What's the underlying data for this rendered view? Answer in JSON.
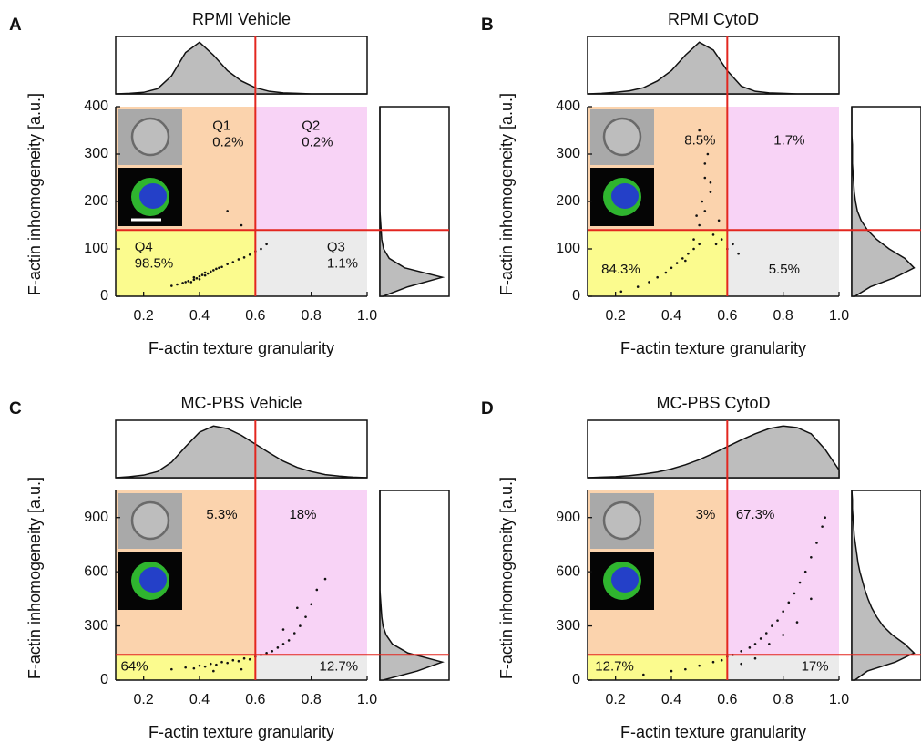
{
  "chart_data": [
    {
      "type": "scatter",
      "panel": "A",
      "title": "RPMI Vehicle",
      "xlabel": "F-actin texture granularity",
      "ylabel": "F-actin inhomogeneity [a.u.]",
      "xlim": [
        0.1,
        1.0
      ],
      "ylim": [
        0,
        400
      ],
      "xticks": [
        0.2,
        0.4,
        0.6,
        0.8,
        {
          "value": 1.0,
          "label": "1.0"
        }
      ],
      "yticks": [
        0,
        100,
        200,
        300,
        400
      ],
      "thresholds": {
        "x": 0.6,
        "y": 140
      },
      "threshold_color": "#e3261f",
      "point_color": "#111111",
      "density_fill": "#bdbdbd",
      "quadrants": {
        "names": [
          "Q1",
          "Q2",
          "Q3",
          "Q4"
        ],
        "values": [
          0.2,
          0.2,
          1.1,
          98.5
        ],
        "value_labels": [
          "0.2%",
          "0.2%",
          "1.1%",
          "98.5%"
        ],
        "colors": [
          "#fbd3ad",
          "#f8d3f6",
          "#ebebeb",
          "#fbfb8e"
        ]
      },
      "points": {
        "x": [
          0.3,
          0.32,
          0.34,
          0.35,
          0.36,
          0.37,
          0.38,
          0.38,
          0.39,
          0.4,
          0.4,
          0.41,
          0.42,
          0.42,
          0.43,
          0.44,
          0.45,
          0.46,
          0.47,
          0.48,
          0.5,
          0.52,
          0.54,
          0.56,
          0.58,
          0.6,
          0.62,
          0.64,
          0.55,
          0.5
        ],
        "y": [
          22,
          25,
          28,
          30,
          32,
          30,
          35,
          40,
          38,
          42,
          36,
          45,
          44,
          50,
          48,
          52,
          55,
          58,
          60,
          62,
          68,
          72,
          78,
          82,
          88,
          95,
          100,
          110,
          150,
          180
        ]
      },
      "x_density": {
        "x": [
          0.1,
          0.15,
          0.2,
          0.25,
          0.3,
          0.35,
          0.4,
          0.45,
          0.5,
          0.55,
          0.6,
          0.65,
          0.7,
          0.75,
          0.8,
          0.85,
          0.9,
          0.95,
          1.0
        ],
        "values": [
          0,
          0.01,
          0.03,
          0.1,
          0.35,
          0.8,
          1.0,
          0.75,
          0.45,
          0.25,
          0.12,
          0.05,
          0.02,
          0.01,
          0,
          0,
          0,
          0,
          0
        ]
      },
      "y_density": {
        "y": [
          0,
          20,
          40,
          60,
          80,
          100,
          120,
          140,
          160,
          180,
          200,
          220,
          240,
          260,
          280,
          300,
          320,
          340,
          360,
          380,
          400
        ],
        "values": [
          0.05,
          0.45,
          1.0,
          0.4,
          0.15,
          0.06,
          0.03,
          0.02,
          0.01,
          0,
          0,
          0,
          0,
          0,
          0,
          0,
          0,
          0,
          0,
          0,
          0
        ]
      }
    },
    {
      "type": "scatter",
      "panel": "B",
      "title": "RPMI CytoD",
      "xlabel": "F-actin texture granularity",
      "ylabel": "F-actin inhomogeneity [a.u.]",
      "xlim": [
        0.1,
        1.0
      ],
      "ylim": [
        0,
        400
      ],
      "xticks": [
        0.2,
        0.4,
        0.6,
        0.8,
        {
          "value": 1.0,
          "label": "1.0"
        }
      ],
      "yticks": [
        0,
        100,
        200,
        300,
        400
      ],
      "thresholds": {
        "x": 0.6,
        "y": 140
      },
      "threshold_color": "#e3261f",
      "point_color": "#111111",
      "density_fill": "#bdbdbd",
      "quadrants": {
        "values": [
          8.5,
          1.7,
          5.5,
          84.3
        ],
        "value_labels": [
          "8.5%",
          "1.7%",
          "5.5%",
          "84.3%"
        ],
        "colors": [
          "#fbd3ad",
          "#f8d3f6",
          "#ebebeb",
          "#fbfb8e"
        ]
      },
      "points": {
        "x": [
          0.22,
          0.28,
          0.32,
          0.35,
          0.38,
          0.4,
          0.42,
          0.44,
          0.45,
          0.46,
          0.48,
          0.48,
          0.5,
          0.5,
          0.51,
          0.52,
          0.52,
          0.53,
          0.54,
          0.55,
          0.56,
          0.57,
          0.58,
          0.6,
          0.62,
          0.64,
          0.5,
          0.52,
          0.54,
          0.49
        ],
        "y": [
          10,
          20,
          30,
          40,
          50,
          60,
          70,
          80,
          75,
          90,
          100,
          120,
          110,
          150,
          200,
          250,
          180,
          300,
          220,
          130,
          110,
          160,
          120,
          100,
          110,
          90,
          350,
          280,
          240,
          170
        ]
      },
      "x_density": {
        "x": [
          0.1,
          0.15,
          0.2,
          0.25,
          0.3,
          0.35,
          0.4,
          0.45,
          0.5,
          0.55,
          0.6,
          0.65,
          0.7,
          0.75,
          0.8,
          0.85,
          0.9,
          0.95,
          1.0
        ],
        "values": [
          0,
          0.01,
          0.03,
          0.06,
          0.12,
          0.25,
          0.45,
          0.75,
          1.0,
          0.85,
          0.45,
          0.15,
          0.05,
          0.02,
          0.01,
          0,
          0,
          0,
          0
        ]
      },
      "y_density": {
        "y": [
          0,
          20,
          40,
          60,
          80,
          100,
          120,
          140,
          160,
          180,
          200,
          220,
          240,
          260,
          280,
          300,
          320,
          340,
          360,
          380,
          400
        ],
        "values": [
          0.05,
          0.3,
          0.7,
          1.0,
          0.85,
          0.6,
          0.4,
          0.25,
          0.15,
          0.09,
          0.06,
          0.04,
          0.03,
          0.02,
          0.01,
          0.01,
          0.01,
          0,
          0,
          0,
          0
        ]
      }
    },
    {
      "type": "scatter",
      "panel": "C",
      "title": "MC-PBS Vehicle",
      "xlabel": "F-actin texture granularity",
      "ylabel": "F-actin inhomogeneity [a.u.]",
      "xlim": [
        0.1,
        1.0
      ],
      "ylim": [
        0,
        1050
      ],
      "xticks": [
        0.2,
        0.4,
        0.6,
        0.8,
        {
          "value": 1.0,
          "label": "1.0"
        }
      ],
      "yticks": [
        0,
        300,
        600,
        900
      ],
      "thresholds": {
        "x": 0.6,
        "y": 140
      },
      "threshold_color": "#e3261f",
      "point_color": "#111111",
      "density_fill": "#bdbdbd",
      "quadrants": {
        "values": [
          5.3,
          18,
          12.7,
          64
        ],
        "value_labels": [
          "5.3%",
          "18%",
          "12.7%",
          "64%"
        ],
        "colors": [
          "#fbd3ad",
          "#f8d3f6",
          "#ebebeb",
          "#fbfb8e"
        ]
      },
      "points": {
        "x": [
          0.3,
          0.35,
          0.38,
          0.4,
          0.42,
          0.44,
          0.46,
          0.48,
          0.5,
          0.52,
          0.54,
          0.56,
          0.58,
          0.6,
          0.62,
          0.64,
          0.66,
          0.68,
          0.7,
          0.72,
          0.74,
          0.76,
          0.78,
          0.8,
          0.82,
          0.7,
          0.75,
          0.85,
          0.45,
          0.55
        ],
        "y": [
          60,
          70,
          65,
          80,
          75,
          90,
          85,
          100,
          95,
          110,
          105,
          120,
          115,
          130,
          140,
          150,
          160,
          180,
          200,
          220,
          260,
          300,
          350,
          420,
          500,
          280,
          400,
          560,
          50,
          60
        ]
      },
      "x_density": {
        "x": [
          0.1,
          0.15,
          0.2,
          0.25,
          0.3,
          0.35,
          0.4,
          0.45,
          0.5,
          0.55,
          0.6,
          0.65,
          0.7,
          0.75,
          0.8,
          0.85,
          0.9,
          0.95,
          1.0
        ],
        "values": [
          0,
          0.02,
          0.05,
          0.12,
          0.3,
          0.6,
          0.88,
          1.0,
          0.95,
          0.82,
          0.65,
          0.48,
          0.32,
          0.2,
          0.12,
          0.06,
          0.03,
          0.01,
          0
        ]
      },
      "y_density": {
        "y": [
          0,
          50,
          100,
          150,
          200,
          250,
          300,
          350,
          400,
          450,
          500,
          550,
          600,
          650,
          700,
          750,
          800,
          850,
          900,
          950,
          1000,
          1050
        ],
        "values": [
          0.05,
          0.6,
          1.0,
          0.45,
          0.2,
          0.1,
          0.05,
          0.03,
          0.02,
          0.01,
          0,
          0,
          0,
          0,
          0,
          0,
          0,
          0,
          0,
          0,
          0,
          0
        ]
      }
    },
    {
      "type": "scatter",
      "panel": "D",
      "title": "MC-PBS CytoD",
      "xlabel": "F-actin texture granularity",
      "ylabel": "F-actin inhomogeneity [a.u.]",
      "xlim": [
        0.1,
        1.0
      ],
      "ylim": [
        0,
        1050
      ],
      "xticks": [
        0.2,
        0.4,
        0.6,
        0.8,
        {
          "value": 1.0,
          "label": "1.0"
        }
      ],
      "yticks": [
        0,
        300,
        600,
        900
      ],
      "thresholds": {
        "x": 0.6,
        "y": 140
      },
      "threshold_color": "#e3261f",
      "point_color": "#111111",
      "density_fill": "#bdbdbd",
      "quadrants": {
        "values": [
          3,
          67.3,
          17,
          12.7
        ],
        "value_labels": [
          "3%",
          "67.3%",
          "17%",
          "12.7%"
        ],
        "colors": [
          "#fbd3ad",
          "#f8d3f6",
          "#ebebeb",
          "#fbfb8e"
        ]
      },
      "points": {
        "x": [
          0.3,
          0.4,
          0.45,
          0.5,
          0.55,
          0.58,
          0.6,
          0.62,
          0.65,
          0.68,
          0.7,
          0.72,
          0.74,
          0.76,
          0.78,
          0.8,
          0.82,
          0.84,
          0.86,
          0.88,
          0.9,
          0.92,
          0.94,
          0.95,
          0.75,
          0.8,
          0.85,
          0.9,
          0.7,
          0.65
        ],
        "y": [
          30,
          50,
          60,
          80,
          100,
          110,
          130,
          140,
          160,
          180,
          200,
          230,
          260,
          300,
          330,
          380,
          430,
          480,
          540,
          600,
          680,
          760,
          850,
          900,
          200,
          250,
          320,
          450,
          120,
          90
        ]
      },
      "x_density": {
        "x": [
          0.1,
          0.15,
          0.2,
          0.25,
          0.3,
          0.35,
          0.4,
          0.45,
          0.5,
          0.55,
          0.6,
          0.65,
          0.7,
          0.75,
          0.8,
          0.85,
          0.9,
          0.95,
          1.0
        ],
        "values": [
          0,
          0.01,
          0.02,
          0.04,
          0.07,
          0.11,
          0.17,
          0.25,
          0.35,
          0.47,
          0.6,
          0.73,
          0.85,
          0.95,
          1.0,
          0.97,
          0.85,
          0.55,
          0.15
        ]
      },
      "y_density": {
        "y": [
          0,
          50,
          100,
          150,
          200,
          250,
          300,
          350,
          400,
          450,
          500,
          550,
          600,
          650,
          700,
          750,
          800,
          850,
          900,
          950,
          1000,
          1050
        ],
        "values": [
          0.05,
          0.25,
          0.7,
          1.0,
          0.85,
          0.65,
          0.5,
          0.4,
          0.32,
          0.26,
          0.21,
          0.17,
          0.13,
          0.1,
          0.08,
          0.06,
          0.04,
          0.03,
          0.02,
          0.01,
          0.01,
          0
        ]
      }
    }
  ]
}
